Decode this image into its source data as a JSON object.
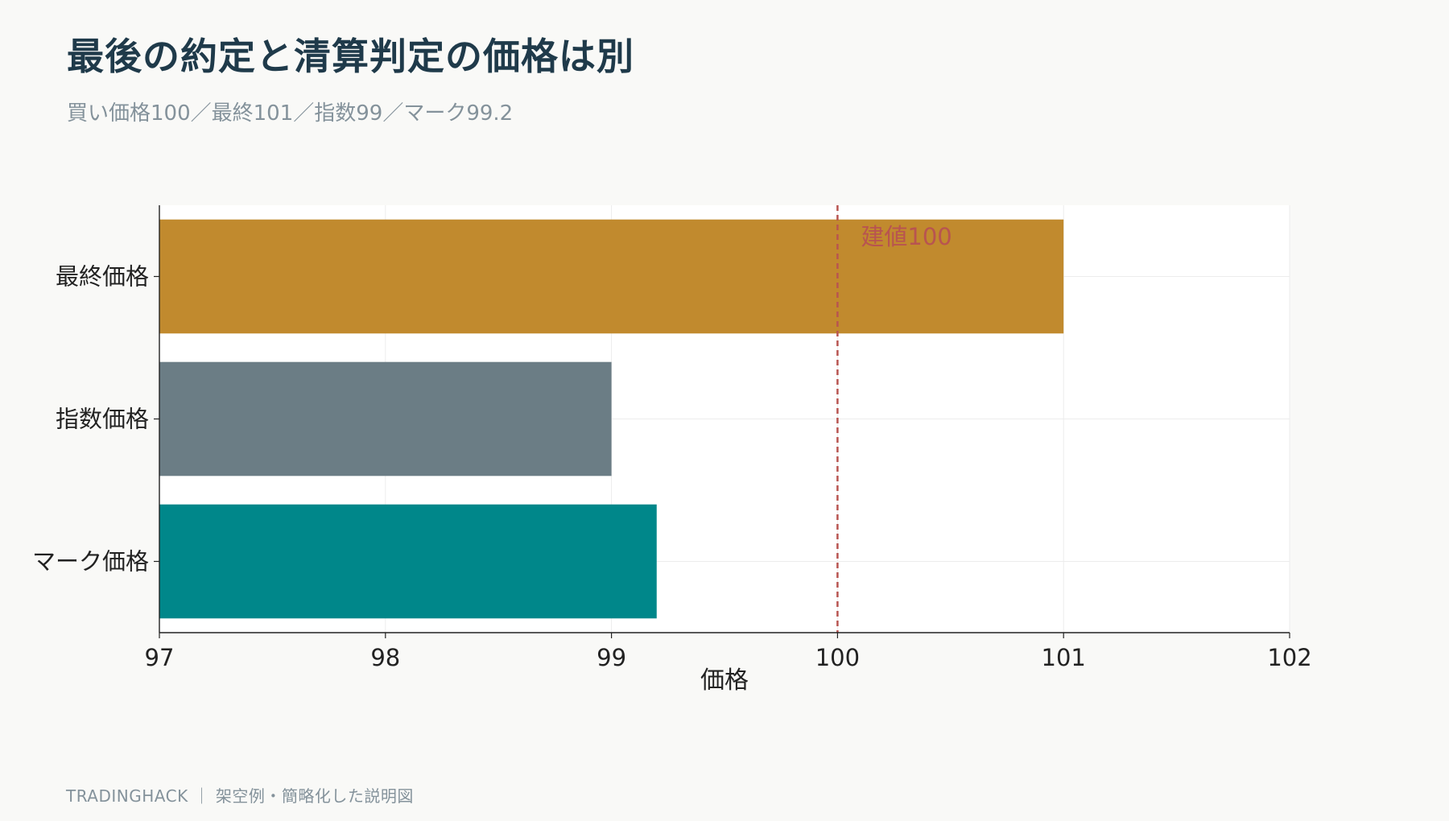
{
  "header": {
    "title": "最後の約定と清算判定の価格は別",
    "subtitle": "買い価格100／最終101／指数99／マーク99.2"
  },
  "footer": {
    "text": "TRADINGHACK ｜ 架空例・簡略化した説明図"
  },
  "chart_data": {
    "type": "bar",
    "orientation": "horizontal",
    "categories": [
      "最終価格",
      "指数価格",
      "マーク価格"
    ],
    "values": [
      101,
      99,
      99.2
    ],
    "colors": [
      "#c18a2e",
      "#6b7d85",
      "#00878a"
    ],
    "xlabel": "価格",
    "ylabel": "",
    "xlim": [
      97,
      102
    ],
    "xticks": [
      97,
      98,
      99,
      100,
      101,
      102
    ],
    "grid": true,
    "reference_line": {
      "value": 100,
      "label": "建値100",
      "color": "#b85450",
      "style": "dashed"
    }
  }
}
